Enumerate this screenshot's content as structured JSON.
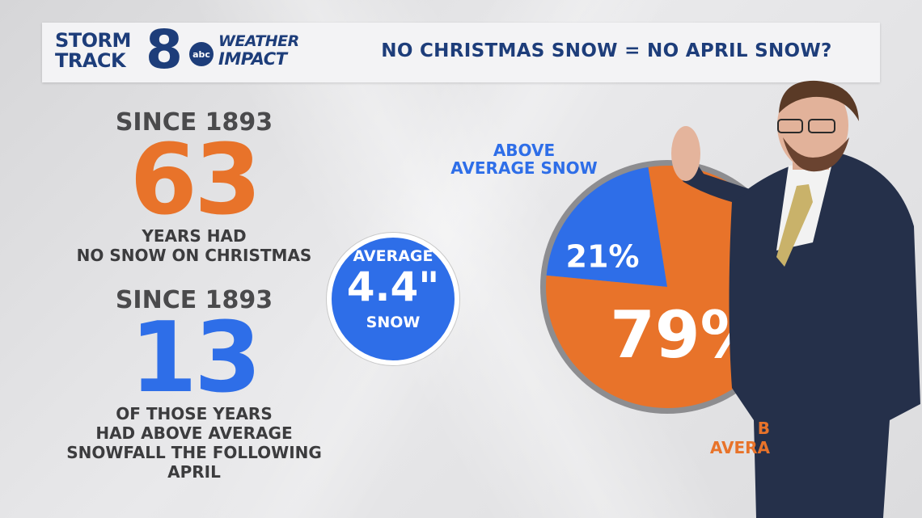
{
  "header": {
    "logo_line1": "STORM",
    "logo_line2": "TRACK",
    "logo_eight": "8",
    "abc": "abc",
    "weather_line1": "WEATHER",
    "weather_line2": "IMPACT",
    "title": "NO CHRISTMAS SNOW = NO APRIL SNOW?"
  },
  "stat1": {
    "since": "SINCE 1893",
    "number": "63",
    "line1": "YEARS HAD",
    "line2": "NO SNOW ON CHRISTMAS"
  },
  "stat2": {
    "since": "SINCE 1893",
    "number": "13",
    "line1": "OF THOSE YEARS",
    "line2": "HAD ABOVE AVERAGE",
    "line3": "SNOWFALL THE FOLLOWING APRIL"
  },
  "average": {
    "top": "AVERAGE",
    "value": "4.4\"",
    "bottom": "SNOW"
  },
  "colors": {
    "orange": "#e8732a",
    "blue": "#2e6ee8",
    "navy": "#1d3d7a"
  },
  "chart_data": {
    "type": "pie",
    "slices": [
      {
        "label_line1": "ABOVE",
        "label_line2": "AVERAGE SNOW",
        "value": 21,
        "display": "21%",
        "color": "#2e6ee8"
      },
      {
        "label_line1": "B",
        "label_line2": "AVERA",
        "value": 79,
        "display": "79%",
        "color": "#e8732a"
      }
    ]
  }
}
